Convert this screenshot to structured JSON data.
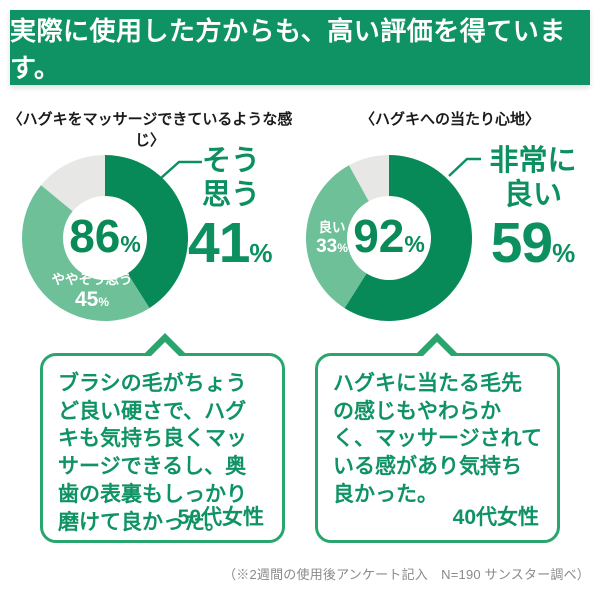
{
  "header": {
    "title": "実際に使用した方からも、高い評価を得ています。",
    "bg_color": "#0f9364",
    "text_color": "#ffffff"
  },
  "chart_data": [
    {
      "type": "pie",
      "title": "〈ハグキをマッサージできているような感じ〉",
      "total_value": "86",
      "total_suffix": "%",
      "slices": [
        {
          "label": "そう思う",
          "value": 41
        },
        {
          "label": "ややそう思う",
          "value": 45
        },
        {
          "label": "",
          "value": 14
        }
      ],
      "colors": [
        "#088a58",
        "#6ec098",
        "#e7e7e6"
      ],
      "callout": {
        "line1": "そう",
        "line2": "思う",
        "value": "41",
        "suffix": "%"
      },
      "inner_label": {
        "name": "ややそう思う",
        "value": "45",
        "suffix": "%"
      }
    },
    {
      "type": "pie",
      "title": "〈ハグキへの当たり心地〉",
      "total_value": "92",
      "total_suffix": "%",
      "slices": [
        {
          "label": "非常に良い",
          "value": 59
        },
        {
          "label": "良い",
          "value": 33
        },
        {
          "label": "",
          "value": 8
        }
      ],
      "colors": [
        "#088a58",
        "#6ec098",
        "#e7e7e6"
      ],
      "callout": {
        "line1": "非常に",
        "line2": "良い",
        "value": "59",
        "suffix": "%"
      },
      "inner_label": {
        "name": "良い",
        "value": "33",
        "suffix": "%"
      }
    }
  ],
  "testimonials": [
    {
      "text": "ブラシの毛がちょうど良い硬さで、ハグキも気持ち良くマッサージできるし、奥歯の表裏もしっかり磨けて良かった。",
      "author": "50代女性"
    },
    {
      "text": "ハグキに当たる毛先の感じもやわらかく、マッサージされている感があり気持ち良かった。",
      "author": "40代女性"
    }
  ],
  "footnote": "（※2週間の使用後アンケート記入　N=190 サンスター調べ）",
  "colors": {
    "banner_green": "#0f9364",
    "slice_dark_green": "#088a58",
    "slice_light_green": "#6ec098",
    "slice_gray": "#e7e7e6",
    "accent_text_green": "#0c9060",
    "bubble_border_green": "#2aa56e",
    "footnote_gray": "#8a8a8a"
  }
}
